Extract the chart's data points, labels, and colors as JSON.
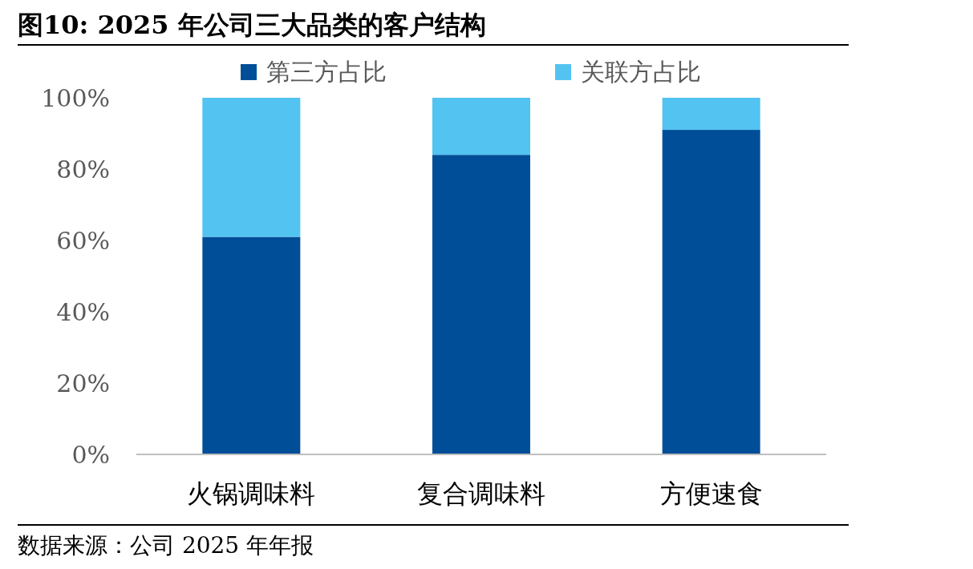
{
  "chart_data": {
    "type": "bar",
    "title": "图10:  2025 年公司三大品类的客户结构",
    "categories": [
      "火锅调味料",
      "复合调味料",
      "方便速食"
    ],
    "stacked": true,
    "series": [
      {
        "name": "第三方占比",
        "color": "#004e98",
        "values": [
          61,
          84,
          91
        ]
      },
      {
        "name": "关联方占比",
        "color": "#53c3f1",
        "values": [
          39,
          16,
          9
        ]
      }
    ],
    "ylim": [
      0,
      100
    ],
    "yticks": [
      {
        "value": 0,
        "label": "0%"
      },
      {
        "value": 20,
        "label": "20%"
      },
      {
        "value": 40,
        "label": "40%"
      },
      {
        "value": 60,
        "label": "60%"
      },
      {
        "value": 80,
        "label": "80%"
      },
      {
        "value": 100,
        "label": "100%"
      }
    ],
    "legend": "top",
    "annotations": [
      "数据来源：公司 2025 年年报"
    ]
  }
}
